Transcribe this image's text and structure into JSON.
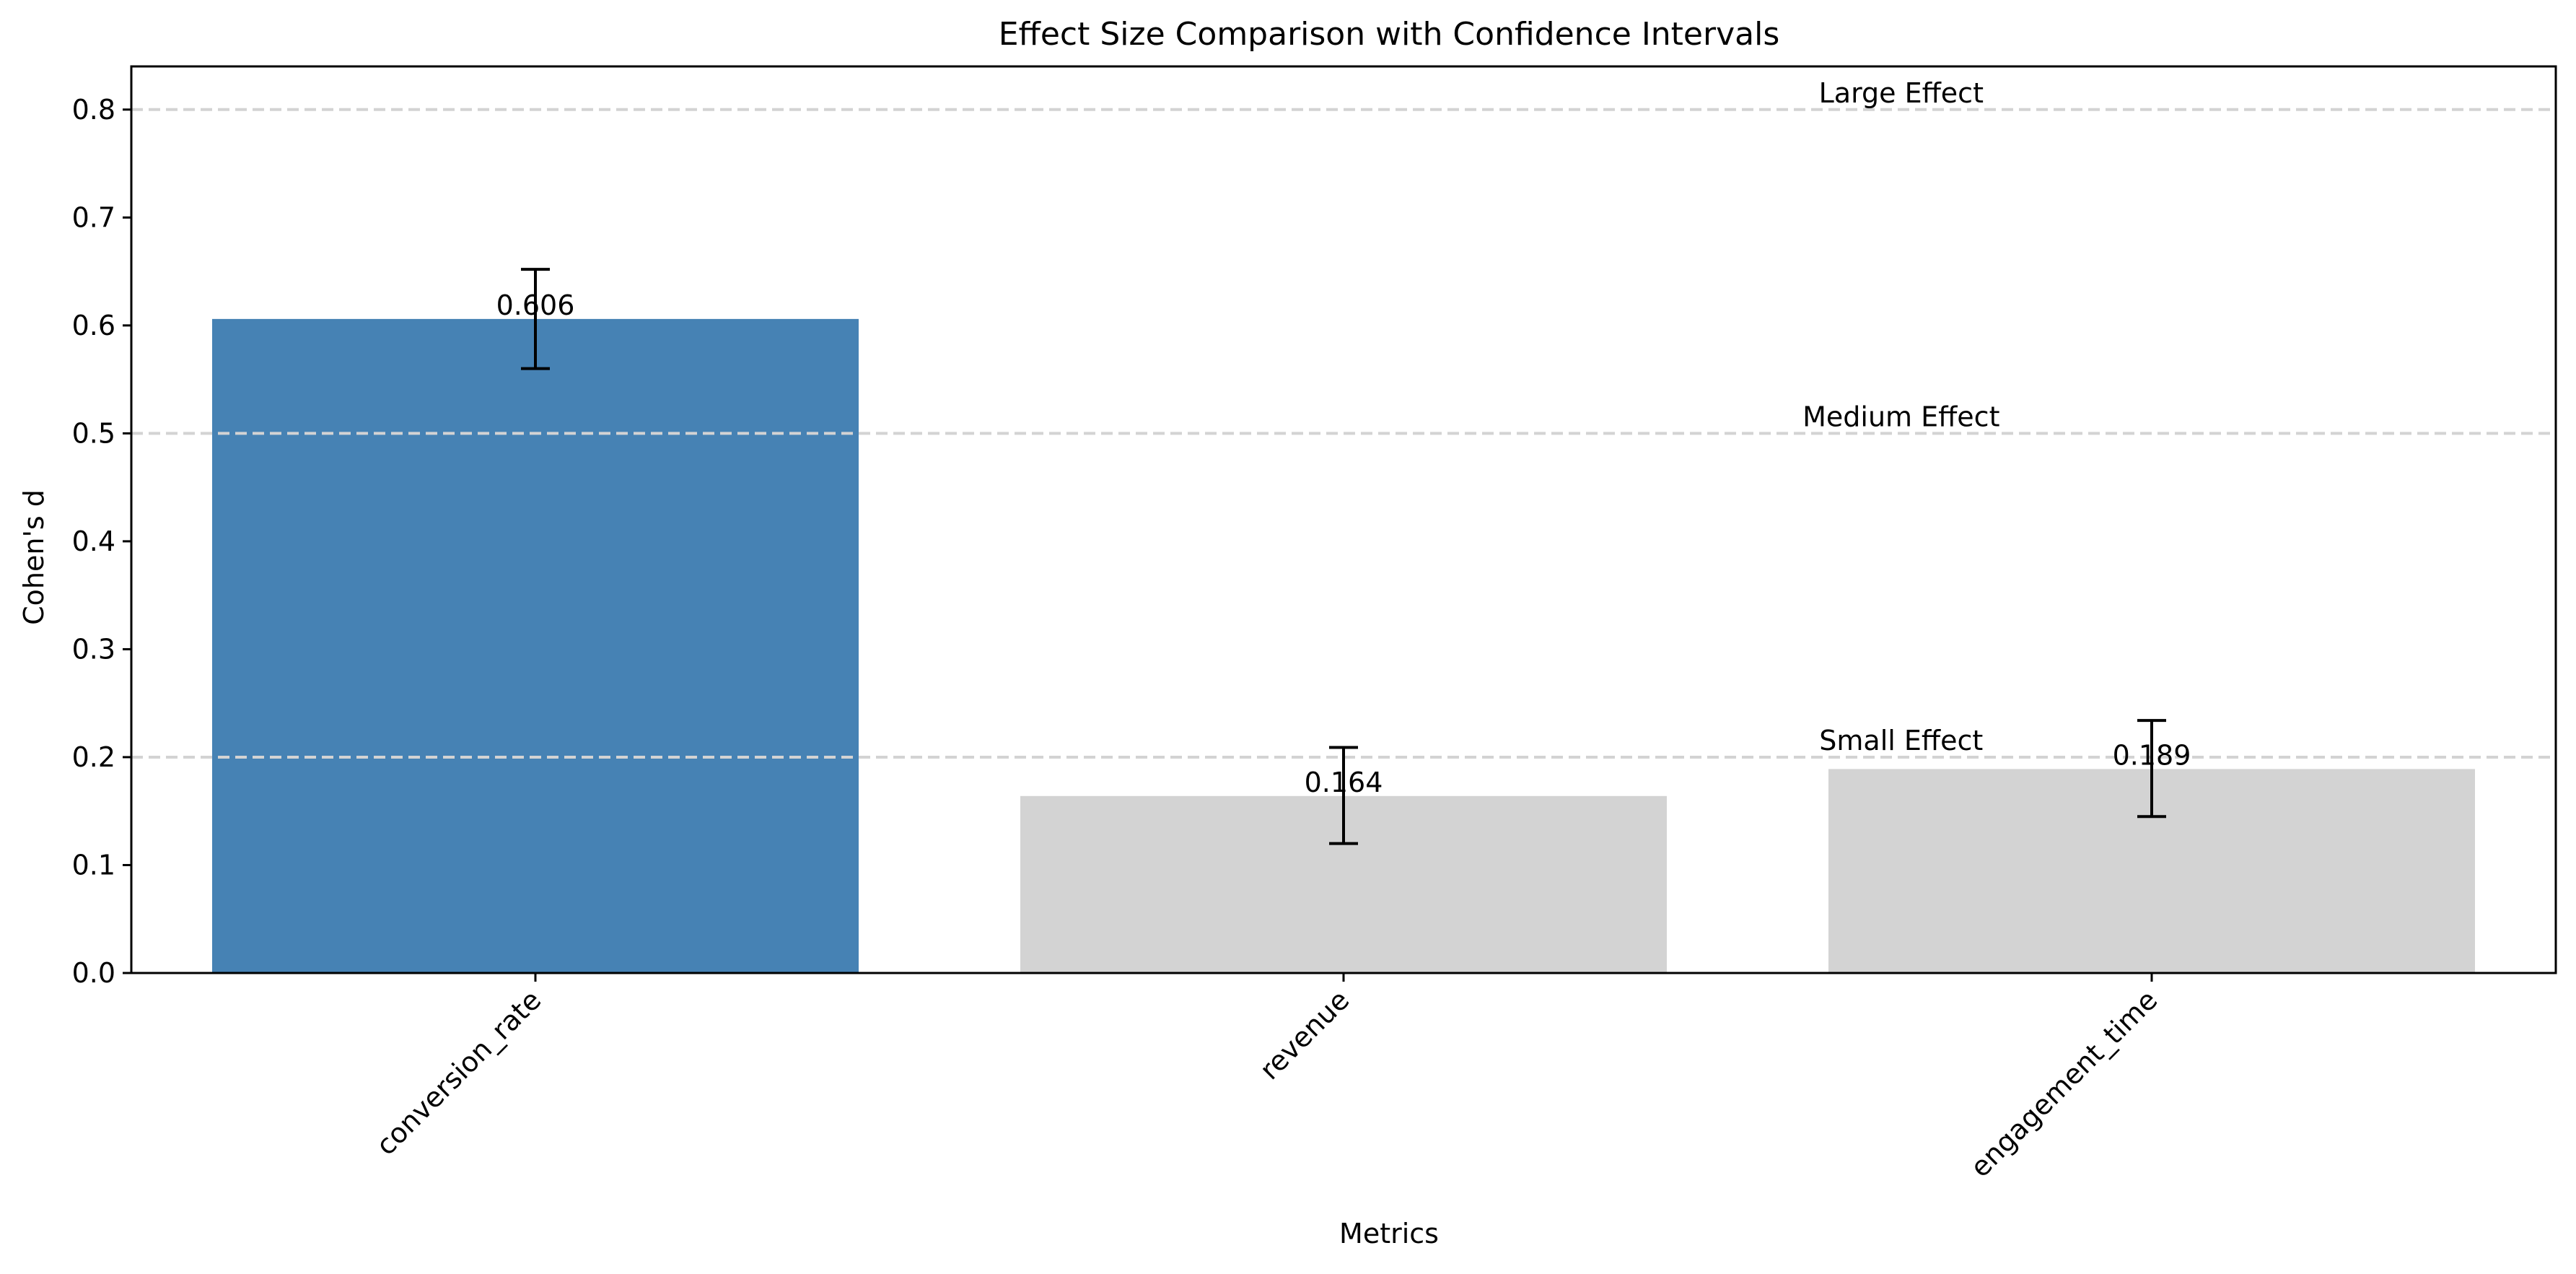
{
  "chart_data": {
    "type": "bar",
    "title": "Effect Size Comparison with Confidence Intervals",
    "xlabel": "Metrics",
    "ylabel": "Cohen's d",
    "categories": [
      "conversion_rate",
      "revenue",
      "engagement_time"
    ],
    "values": [
      0.606,
      0.164,
      0.189
    ],
    "value_labels": [
      "0.606",
      "0.164",
      "0.189"
    ],
    "error_bars": [
      {
        "low": 0.56,
        "high": 0.652
      },
      {
        "low": 0.12,
        "high": 0.209
      },
      {
        "low": 0.145,
        "high": 0.234
      }
    ],
    "bar_colors": [
      "#4682b4",
      "#d3d3d3",
      "#d3d3d3"
    ],
    "ylim": [
      0,
      0.84
    ],
    "yticks": [
      0.0,
      0.1,
      0.2,
      0.3,
      0.4,
      0.5,
      0.6,
      0.7,
      0.8
    ],
    "ytick_labels": [
      "0.0",
      "0.1",
      "0.2",
      "0.3",
      "0.4",
      "0.5",
      "0.6",
      "0.7",
      "0.8"
    ],
    "thresholds": [
      {
        "value": 0.2,
        "label": "Small Effect"
      },
      {
        "value": 0.5,
        "label": "Medium Effect"
      },
      {
        "value": 0.8,
        "label": "Large Effect"
      }
    ],
    "threshold_color": "#d3d3d3",
    "grid": false,
    "xtick_rotation": 45
  }
}
